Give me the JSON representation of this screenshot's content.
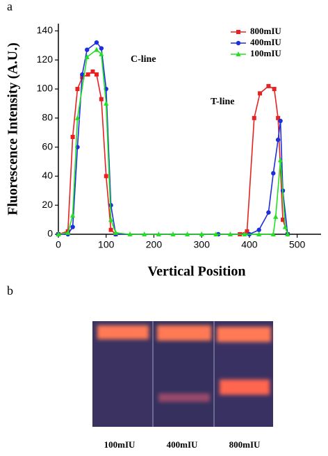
{
  "chart_data": {
    "type": "line",
    "panel_label": "a",
    "xlabel": "Vertical Position",
    "ylabel": "Fluorescence Intensity (A.U.)",
    "xlim": [
      0,
      550
    ],
    "ylim": [
      0,
      145
    ],
    "xticks": [
      0,
      100,
      200,
      300,
      400,
      500
    ],
    "yticks": [
      0,
      20,
      40,
      60,
      80,
      100,
      120,
      140
    ],
    "legend": "upper right",
    "annotations": [
      "C-line",
      "T-line"
    ],
    "series": [
      {
        "name": "800mIU",
        "color": "#e8201f",
        "marker": "square",
        "x": [
          0,
          20,
          30,
          40,
          50,
          62,
          72,
          80,
          90,
          100,
          110,
          120,
          380,
          395,
          410,
          422,
          440,
          452,
          460,
          470,
          480
        ],
        "values": [
          0,
          2,
          67,
          100,
          108,
          110,
          112,
          110,
          93,
          40,
          3,
          0,
          0,
          2,
          80,
          97,
          102,
          100,
          80,
          10,
          0
        ]
      },
      {
        "name": "400mIU",
        "color": "#1c2fd8",
        "marker": "circle",
        "x": [
          0,
          20,
          30,
          40,
          50,
          60,
          80,
          90,
          100,
          110,
          120,
          335,
          400,
          420,
          440,
          450,
          460,
          465,
          470,
          480
        ],
        "values": [
          0,
          0,
          5,
          60,
          110,
          127,
          132,
          128,
          100,
          20,
          0,
          0,
          0,
          3,
          15,
          42,
          65,
          78,
          30,
          0
        ]
      },
      {
        "name": "100mIU",
        "color": "#22e022",
        "marker": "triangle",
        "x": [
          0,
          20,
          30,
          40,
          60,
          80,
          90,
          100,
          110,
          120,
          150,
          180,
          210,
          240,
          270,
          300,
          330,
          360,
          390,
          420,
          450,
          455,
          465,
          475,
          480
        ],
        "values": [
          0,
          1,
          13,
          80,
          122,
          127,
          124,
          90,
          10,
          1,
          0,
          0,
          0,
          0,
          0,
          0,
          0,
          0,
          0,
          0,
          0,
          12,
          51,
          5,
          0
        ]
      }
    ]
  },
  "photo": {
    "panel_label": "b",
    "lanes": [
      "100mIU",
      "400mIU",
      "800mIU"
    ]
  }
}
